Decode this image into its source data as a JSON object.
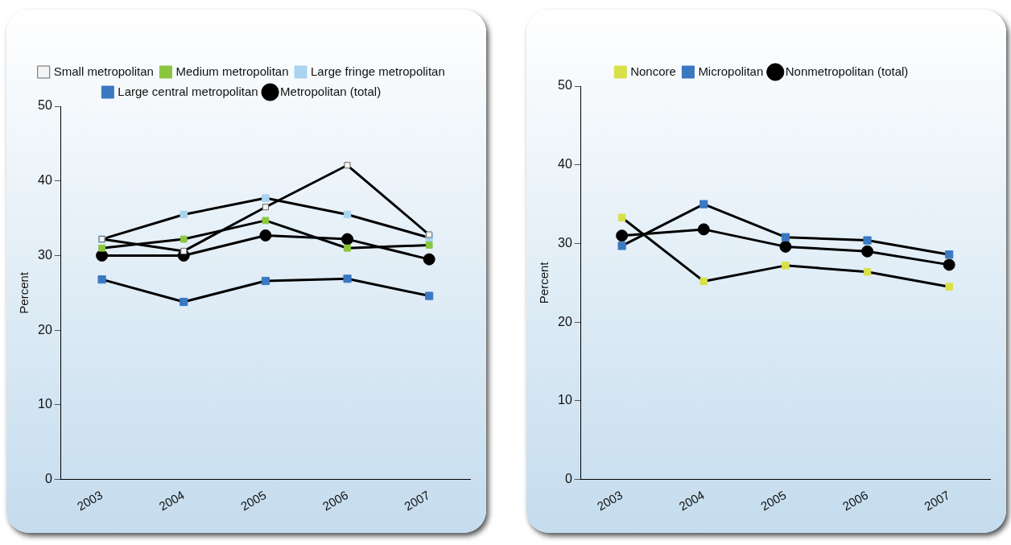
{
  "chart_data": [
    {
      "type": "line",
      "ylabel": "Percent",
      "categories": [
        "2003",
        "2004",
        "2005",
        "2006",
        "2007"
      ],
      "ylim": [
        0,
        50
      ],
      "yticks": [
        0,
        10,
        20,
        30,
        40,
        50
      ],
      "grid": false,
      "legend": "top",
      "line_style": "solid",
      "series": [
        {
          "name": "Metropolitan (total)",
          "color": "#000000",
          "marker": "circle",
          "values": [
            30.0,
            30.0,
            32.7,
            32.2,
            29.5
          ]
        },
        {
          "name": "Large central metropolitan",
          "color": "#3a78c2",
          "marker": "square",
          "values": [
            26.8,
            23.8,
            26.6,
            26.9,
            24.6
          ]
        },
        {
          "name": "Large fringe metropolitan",
          "color": "#a9d4f0",
          "marker": "square",
          "values": [
            32.2,
            35.5,
            37.7,
            35.5,
            32.4
          ]
        },
        {
          "name": "Medium metropolitan",
          "color": "#8cc63f",
          "marker": "square",
          "values": [
            31.0,
            32.2,
            34.7,
            31.0,
            31.4
          ]
        },
        {
          "name": "Small metropolitan",
          "color": "#f4f4f4",
          "marker": "square",
          "values": [
            32.2,
            30.6,
            36.5,
            42.1,
            32.8
          ]
        }
      ]
    },
    {
      "type": "line",
      "ylabel": "Percent",
      "categories": [
        "2003",
        "2004",
        "2005",
        "2006",
        "2007"
      ],
      "ylim": [
        0,
        50
      ],
      "yticks": [
        0,
        10,
        20,
        30,
        40,
        50
      ],
      "grid": false,
      "legend": "top",
      "line_style": "solid",
      "series": [
        {
          "name": "Nonmetropolitan (total)",
          "color": "#000000",
          "marker": "circle",
          "values": [
            31.0,
            31.8,
            29.6,
            29.0,
            27.3
          ]
        },
        {
          "name": "Micropolitan",
          "color": "#3a78c2",
          "marker": "square",
          "values": [
            29.7,
            35.0,
            30.8,
            30.4,
            28.6
          ]
        },
        {
          "name": "Noncore",
          "color": "#d8e04a",
          "marker": "square",
          "values": [
            33.3,
            25.2,
            27.2,
            26.4,
            24.5
          ]
        }
      ]
    }
  ]
}
